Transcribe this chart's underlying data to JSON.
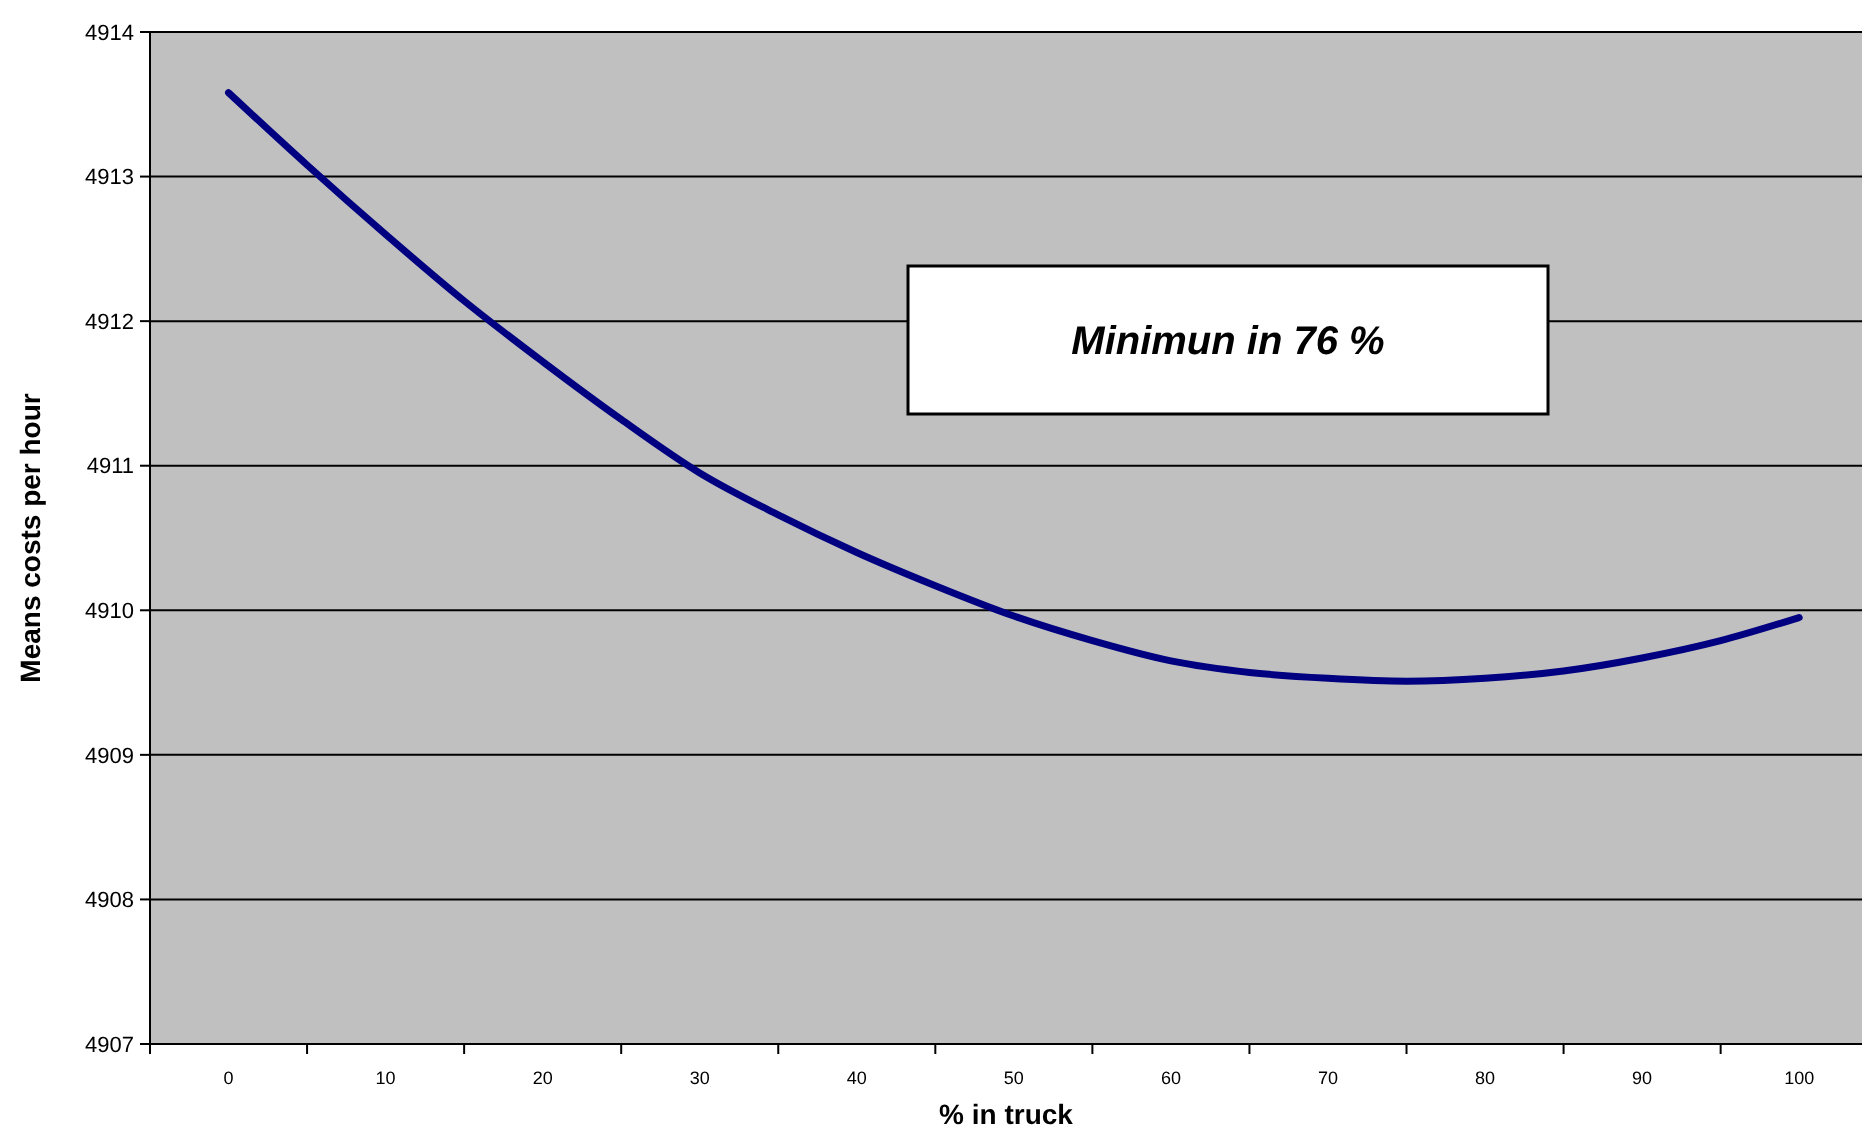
{
  "chart_data": {
    "type": "line",
    "xlabel": "% in truck",
    "ylabel": "Means costs per hour",
    "annotations": [
      "Minimun in 76 %"
    ],
    "x": [
      0,
      5,
      10,
      15,
      20,
      25,
      30,
      35,
      40,
      45,
      50,
      55,
      60,
      65,
      70,
      75,
      80,
      85,
      90,
      95,
      100
    ],
    "series": [
      {
        "color": "#000080",
        "values": [
          4913.58,
          4913.08,
          4912.6,
          4912.14,
          4911.72,
          4911.32,
          4910.95,
          4910.66,
          4910.4,
          4910.17,
          4909.96,
          4909.79,
          4909.65,
          4909.57,
          4909.53,
          4909.51,
          4909.53,
          4909.58,
          4909.67,
          4909.79,
          4909.95
        ]
      }
    ],
    "xlim": [
      -5,
      104
    ],
    "xticks": [
      {
        "value": -5,
        "label": null
      },
      0,
      {
        "value": 5,
        "label": null
      },
      10,
      {
        "value": 15,
        "label": null
      },
      20,
      {
        "value": 25,
        "label": null
      },
      30,
      {
        "value": 35,
        "label": null
      },
      40,
      {
        "value": 45,
        "label": null
      },
      50,
      {
        "value": 55,
        "label": null
      },
      60,
      {
        "value": 65,
        "label": null
      },
      70,
      {
        "value": 75,
        "label": null
      },
      80,
      {
        "value": 85,
        "label": null
      },
      90,
      {
        "value": 95,
        "label": null
      },
      100
    ],
    "ylim": [
      4907,
      4914
    ],
    "yticks": [
      4907,
      4908,
      4909,
      4910,
      4911,
      4912,
      4913,
      4914
    ],
    "grid": "y",
    "marker": "none",
    "line_style": "solid"
  }
}
